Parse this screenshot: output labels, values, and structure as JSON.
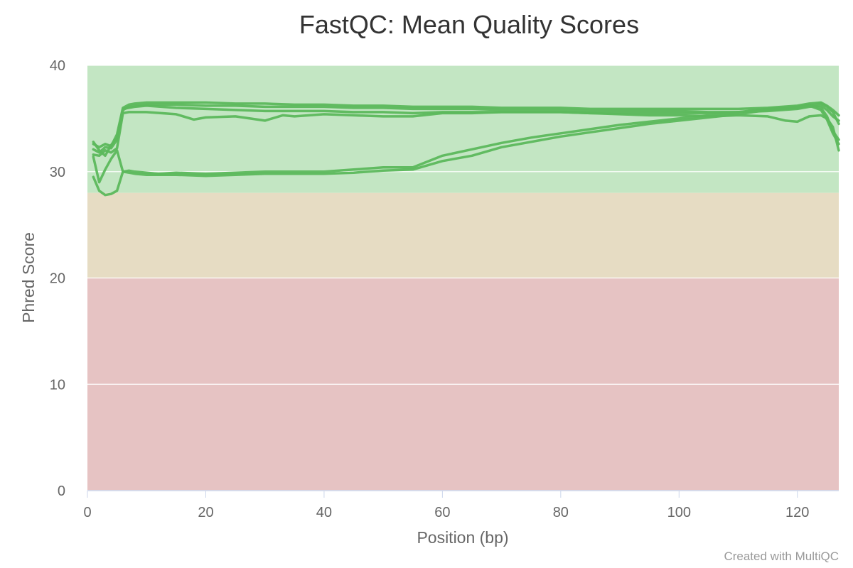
{
  "page": {
    "credit": "Created with MultiQC"
  },
  "chart_data": {
    "type": "line",
    "title": "FastQC: Mean Quality Scores",
    "xlabel": "Position (bp)",
    "ylabel": "Phred Score",
    "xlim": [
      0,
      127
    ],
    "ylim": [
      0,
      40
    ],
    "xticks": [
      0,
      20,
      40,
      60,
      80,
      100,
      120
    ],
    "yticks": [
      0,
      10,
      20,
      30,
      40
    ],
    "grid": true,
    "legend": "none",
    "line_color": "#5cb85c",
    "bands": [
      {
        "from": 28,
        "to": 40,
        "color": "#c3e6c3"
      },
      {
        "from": 20,
        "to": 28,
        "color": "#e6dcc3"
      },
      {
        "from": 0,
        "to": 20,
        "color": "#e6c3c3"
      }
    ],
    "series": [
      {
        "x": [
          1,
          2,
          3,
          4,
          5,
          6,
          7,
          8,
          10,
          15,
          20,
          25,
          30,
          35,
          40,
          45,
          50,
          55,
          60,
          65,
          70,
          75,
          80,
          85,
          90,
          95,
          100,
          105,
          110,
          115,
          120,
          122,
          124,
          125,
          126,
          127
        ],
        "y": [
          32.6,
          32.3,
          32.6,
          32.4,
          33.5,
          36.0,
          36.3,
          36.4,
          36.5,
          36.5,
          36.5,
          36.4,
          36.4,
          36.3,
          36.3,
          36.2,
          36.2,
          36.1,
          36.1,
          36.1,
          36.0,
          36.0,
          36.0,
          35.9,
          35.9,
          35.9,
          35.9,
          35.9,
          35.9,
          36.0,
          36.2,
          36.4,
          36.5,
          36.2,
          35.8,
          35.3
        ]
      },
      {
        "x": [
          1,
          2,
          3,
          4,
          5,
          6,
          7,
          8,
          10,
          15,
          20,
          25,
          30,
          35,
          40,
          45,
          50,
          55,
          60,
          65,
          70,
          75,
          80,
          85,
          90,
          95,
          100,
          105,
          110,
          115,
          120,
          122,
          124,
          125,
          126,
          127
        ],
        "y": [
          32.1,
          31.8,
          32.3,
          32.2,
          33.0,
          35.8,
          36.1,
          36.2,
          36.3,
          36.3,
          36.2,
          36.2,
          36.1,
          36.1,
          36.1,
          36.0,
          36.0,
          35.9,
          35.9,
          35.9,
          35.8,
          35.8,
          35.8,
          35.7,
          35.7,
          35.7,
          35.7,
          35.6,
          35.6,
          35.7,
          35.9,
          36.1,
          36.2,
          35.8,
          35.2,
          34.8
        ]
      },
      {
        "x": [
          1,
          2,
          3,
          4,
          5,
          6,
          7,
          8,
          10,
          15,
          18,
          20,
          25,
          30,
          33,
          35,
          40,
          45,
          50,
          55,
          60,
          65,
          70,
          75,
          80,
          85,
          90,
          95,
          100,
          105,
          110,
          115,
          118,
          120,
          122,
          124,
          125,
          126,
          127
        ],
        "y": [
          31.6,
          31.5,
          32.0,
          31.8,
          32.2,
          35.5,
          35.6,
          35.6,
          35.6,
          35.4,
          34.9,
          35.1,
          35.2,
          34.8,
          35.3,
          35.2,
          35.4,
          35.3,
          35.2,
          35.2,
          35.5,
          35.5,
          35.6,
          35.6,
          35.6,
          35.5,
          35.4,
          35.3,
          35.3,
          35.2,
          35.3,
          35.2,
          34.8,
          34.7,
          35.2,
          35.3,
          35.0,
          34.2,
          32.0
        ]
      },
      {
        "x": [
          1,
          2,
          3,
          4,
          5,
          6,
          7,
          8,
          10,
          15,
          20,
          25,
          30,
          35,
          40,
          45,
          50,
          55,
          60,
          65,
          70,
          75,
          80,
          85,
          90,
          95,
          100,
          105,
          110,
          115,
          120,
          122,
          124,
          125,
          126,
          127
        ],
        "y": [
          32.8,
          32.0,
          31.5,
          32.5,
          33.2,
          35.9,
          36.0,
          36.1,
          36.2,
          36.0,
          35.9,
          35.8,
          35.7,
          35.7,
          35.7,
          35.6,
          35.6,
          35.5,
          35.6,
          35.6,
          35.6,
          35.6,
          35.6,
          35.5,
          35.5,
          35.5,
          35.5,
          35.5,
          35.6,
          35.8,
          36.0,
          36.2,
          36.4,
          36.1,
          35.6,
          34.5
        ]
      },
      {
        "x": [
          1,
          2,
          3,
          4,
          5,
          6,
          7,
          8,
          10,
          12,
          15,
          20,
          25,
          30,
          35,
          40,
          45,
          50,
          55,
          60,
          65,
          70,
          75,
          80,
          85,
          90,
          95,
          100,
          105,
          110,
          115,
          120,
          122,
          124,
          125,
          126,
          127
        ],
        "y": [
          29.5,
          28.2,
          27.8,
          27.9,
          28.2,
          30.0,
          30.1,
          30.0,
          29.9,
          29.8,
          29.9,
          29.8,
          29.9,
          30.0,
          30.0,
          30.0,
          30.2,
          30.4,
          30.4,
          31.5,
          32.1,
          32.7,
          33.2,
          33.6,
          34.0,
          34.4,
          34.7,
          35.0,
          35.3,
          35.6,
          35.9,
          36.1,
          36.3,
          36.0,
          35.2,
          33.8,
          33.0
        ]
      },
      {
        "x": [
          1,
          2,
          3,
          4,
          5,
          6,
          7,
          8,
          10,
          12,
          15,
          20,
          25,
          30,
          35,
          40,
          45,
          50,
          55,
          60,
          65,
          70,
          75,
          80,
          85,
          90,
          95,
          100,
          105,
          110,
          115,
          120,
          122,
          124,
          125,
          126,
          127
        ],
        "y": [
          31.4,
          29.0,
          30.2,
          31.2,
          32.0,
          30.0,
          29.9,
          29.8,
          29.7,
          29.7,
          29.7,
          29.6,
          29.7,
          29.8,
          29.8,
          29.8,
          29.9,
          30.1,
          30.2,
          31.0,
          31.5,
          32.3,
          32.8,
          33.3,
          33.7,
          34.1,
          34.5,
          34.8,
          35.1,
          35.4,
          35.8,
          36.0,
          36.2,
          35.8,
          34.9,
          33.6,
          32.6
        ]
      }
    ]
  }
}
